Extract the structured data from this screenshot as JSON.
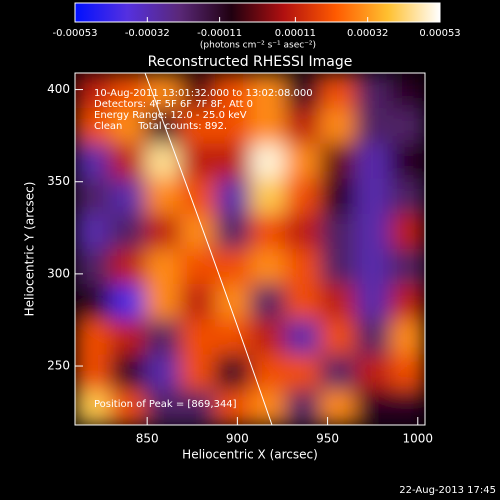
{
  "chart_data": {
    "type": "heatmap",
    "title": "Reconstructed RHESSI Image",
    "colorbar_label": "(photons cm⁻² s⁻¹ asec⁻²)",
    "x_label": "Heliocentric X (arcsec)",
    "y_label": "Heliocentric Y (arcsec)",
    "annotations": [
      "10-Aug-2011 13:01:32.000 to 13:02:08.000",
      "Detectors: 4F 5F 6F 7F 8F, Att 0",
      "Energy Range: 12.0 - 25.0 keV",
      "Clean     Total counts: 892."
    ],
    "peak_label": "Position of Peak = [869,344]",
    "footer": "22-Aug-2013 17:45",
    "xlim": [
      810,
      1004
    ],
    "xticks": [
      850,
      900,
      950,
      1000
    ],
    "ylim": [
      218,
      409
    ],
    "yticks": [
      250,
      300,
      350,
      400
    ],
    "zlim": [
      -0.00053,
      0.00053
    ],
    "zticks": [
      -0.00053,
      -0.00032,
      -0.00011,
      0.00011,
      0.00032,
      0.00053
    ],
    "colormap": [
      "#0010ff",
      "#5530e0",
      "#5a2878",
      "#200010",
      "#b01010",
      "#ff5a00",
      "#ffc030",
      "#ffffff"
    ],
    "z": [
      [
        0.0001,
        0.0002,
        0.0003,
        0.0,
        0.0002,
        0.0003,
        -0.0001,
        0.0002,
        -0.0002,
        -0.0001
      ],
      [
        0.0002,
        0.0003,
        -0.0001,
        0.0002,
        0.0002,
        0.0003,
        0.0001,
        0.0003,
        -0.0002,
        -0.0002
      ],
      [
        -0.0003,
        0.0001,
        0.00045,
        0.0001,
        0.0001,
        0.0005,
        0.0003,
        0.0,
        -0.0003,
        -0.0001
      ],
      [
        -0.0002,
        -0.0003,
        0.0003,
        0.0002,
        -0.0003,
        0.0004,
        0.0002,
        -0.0001,
        -0.0003,
        -0.0002
      ],
      [
        -0.0003,
        -0.0002,
        0.0001,
        0.0003,
        -0.0002,
        0.0002,
        0.0001,
        -0.0002,
        -0.0003,
        0.0001
      ],
      [
        -0.0002,
        0.0001,
        0.0003,
        0.0002,
        0.0002,
        0.0003,
        0.0002,
        -0.0002,
        -0.0003,
        -0.0002
      ],
      [
        -0.0001,
        -0.0004,
        0.0003,
        0.0001,
        0.0003,
        -0.0002,
        0.0002,
        0.0001,
        -0.0003,
        0.0001
      ],
      [
        0.0002,
        0.0001,
        -0.0002,
        0.0002,
        0.0002,
        0.0001,
        -0.0003,
        0.0002,
        -0.0002,
        0.0003
      ],
      [
        0.0002,
        -0.0001,
        -0.0003,
        0.0002,
        -0.0001,
        0.0002,
        0.0002,
        -0.0002,
        0.0001,
        0.0002
      ],
      [
        0.0004,
        0.0002,
        -0.0002,
        -0.0002,
        0.0002,
        0.0003,
        -0.0002,
        0.0003,
        -0.0001,
        -0.0001
      ]
    ]
  }
}
